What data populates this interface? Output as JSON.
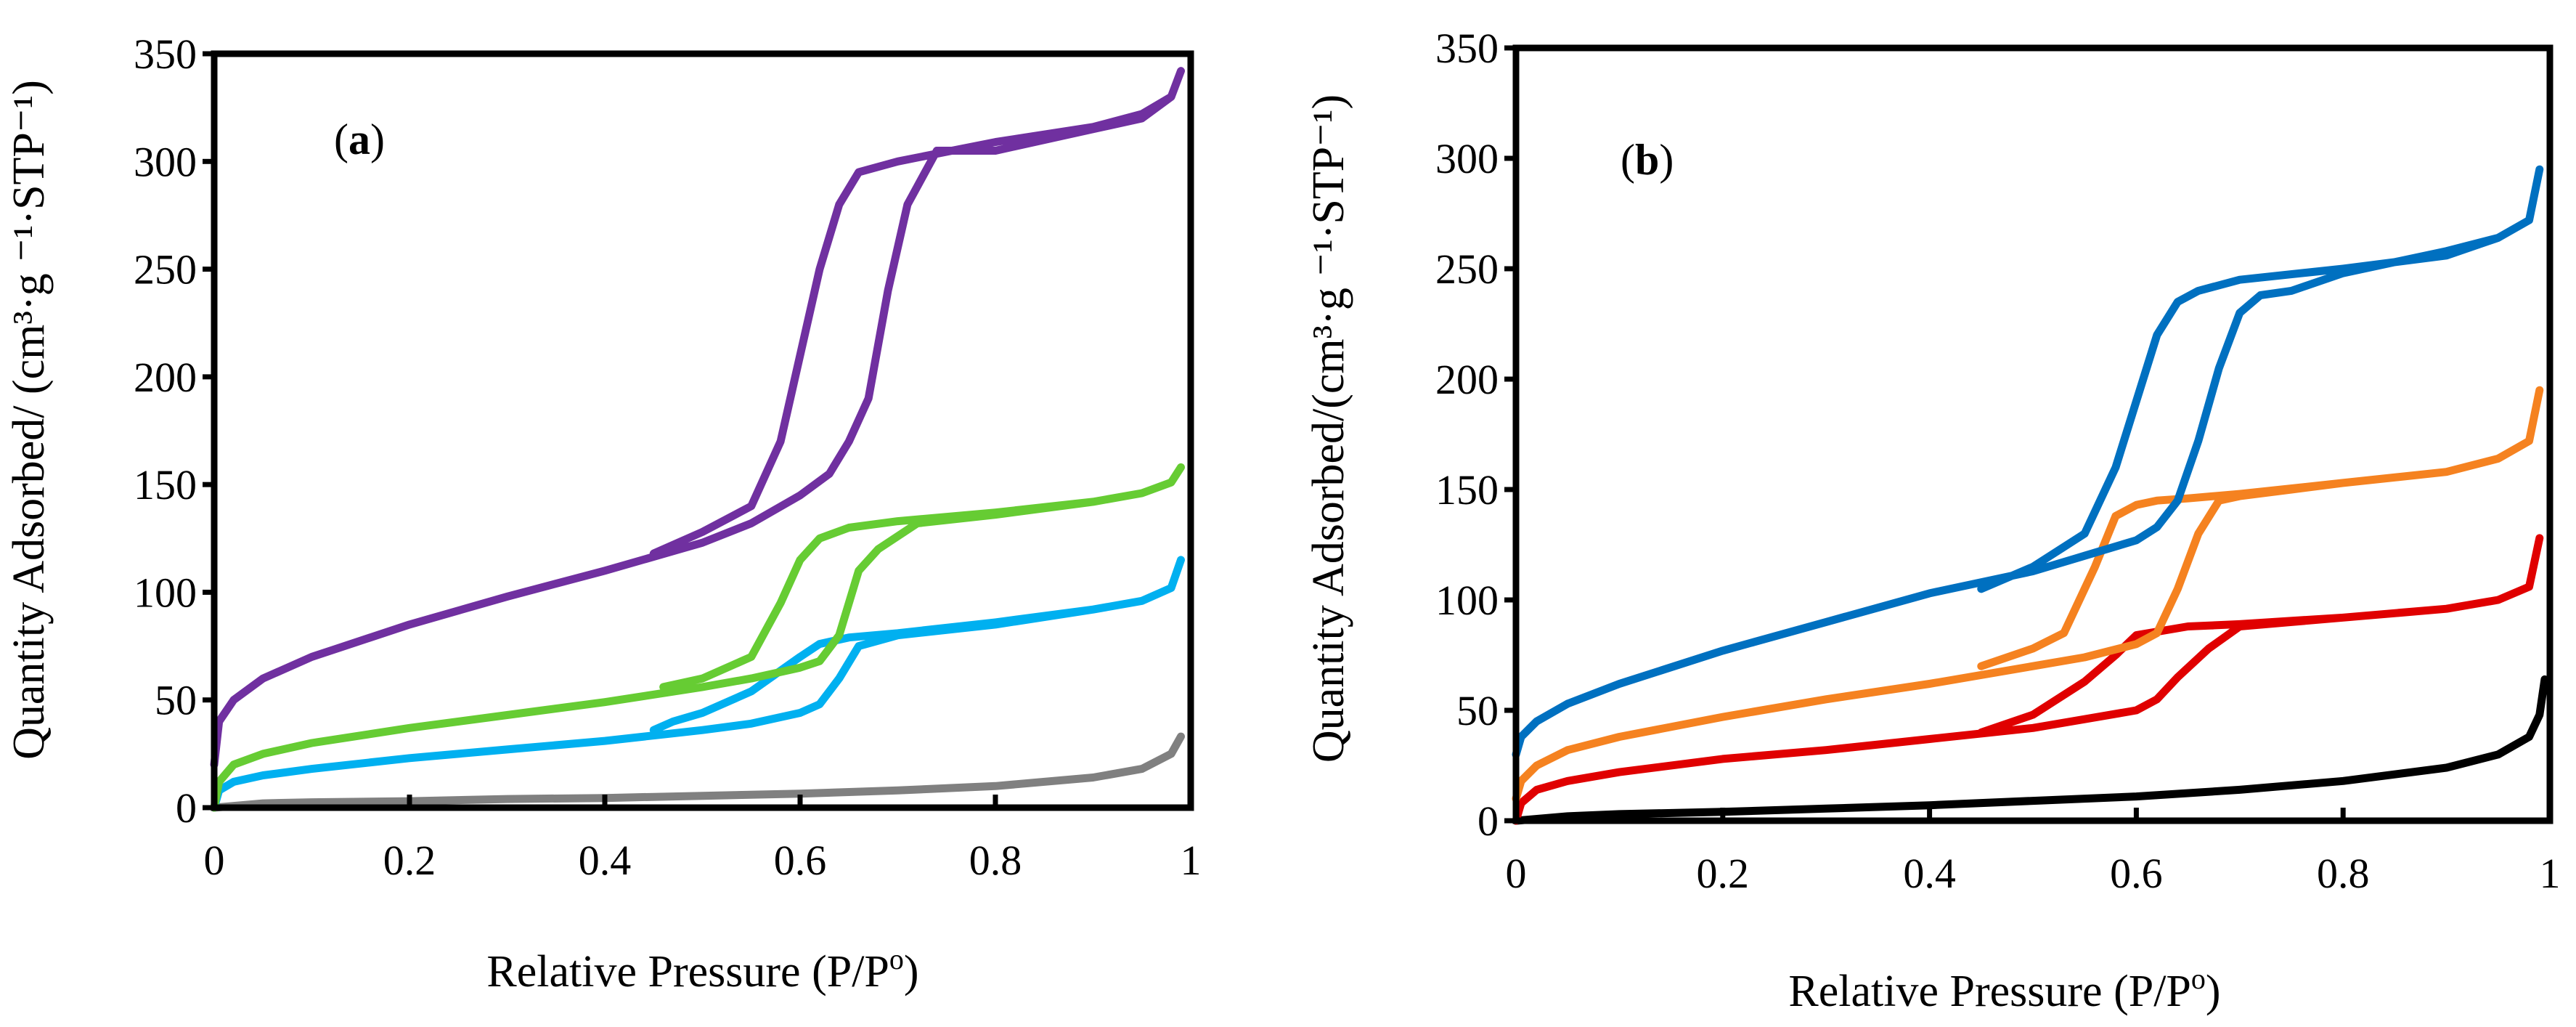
{
  "chart_data": [
    {
      "type": "line",
      "panel_label_open": "(",
      "panel_label_letter": "a",
      "panel_label_close": ")",
      "xlabel": "Relative Pressure (P/P",
      "xlabel_sup": "o",
      "xlabel_end": ")",
      "ylabel": "Quantity Adsorbed/ (cm³·g ⁻¹·STP⁻¹)",
      "xlim": [
        0,
        1
      ],
      "ylim": [
        0,
        350
      ],
      "xticks": [
        "0",
        "0.2",
        "0.4",
        "0.6",
        "0.8",
        "1"
      ],
      "yticks": [
        "0",
        "50",
        "100",
        "150",
        "200",
        "250",
        "300",
        "350"
      ],
      "grid": false,
      "series": [
        {
          "color": "#808080",
          "x": [
            0.0,
            0.05,
            0.1,
            0.2,
            0.3,
            0.4,
            0.5,
            0.6,
            0.7,
            0.8,
            0.9,
            0.95,
            0.98,
            0.99
          ],
          "y": [
            0,
            2,
            2.5,
            3,
            4,
            4.5,
            5.5,
            6.5,
            8,
            10,
            14,
            18,
            25,
            33
          ]
        },
        {
          "color": "#00B0F0",
          "x": [
            0.0,
            0.005,
            0.02,
            0.05,
            0.1,
            0.2,
            0.3,
            0.4,
            0.5,
            0.55,
            0.6,
            0.62,
            0.64,
            0.66,
            0.7,
            0.8,
            0.9,
            0.95,
            0.98,
            0.99,
            0.98,
            0.95,
            0.9,
            0.8,
            0.7,
            0.65,
            0.62,
            0.6,
            0.55,
            0.5,
            0.47,
            0.45
          ],
          "y": [
            0,
            8,
            12,
            15,
            18,
            23,
            27,
            31,
            36,
            39,
            44,
            48,
            60,
            75,
            80,
            85,
            92,
            96,
            102,
            115,
            102,
            96,
            92,
            86,
            81,
            79,
            76,
            70,
            54,
            44,
            40,
            36
          ]
        },
        {
          "color": "#66CC33",
          "x": [
            0.0,
            0.005,
            0.02,
            0.05,
            0.1,
            0.2,
            0.3,
            0.4,
            0.5,
            0.55,
            0.6,
            0.62,
            0.64,
            0.66,
            0.68,
            0.72,
            0.8,
            0.9,
            0.95,
            0.98,
            0.99,
            0.98,
            0.95,
            0.9,
            0.8,
            0.7,
            0.65,
            0.62,
            0.6,
            0.58,
            0.55,
            0.5,
            0.46
          ],
          "y": [
            0,
            12,
            20,
            25,
            30,
            37,
            43,
            49,
            56,
            60,
            65,
            68,
            80,
            110,
            120,
            132,
            136,
            142,
            146,
            151,
            158,
            151,
            146,
            142,
            137,
            133,
            130,
            125,
            115,
            95,
            70,
            60,
            56
          ]
        },
        {
          "color": "#7030A0",
          "x": [
            0.0,
            0.005,
            0.02,
            0.05,
            0.1,
            0.2,
            0.3,
            0.4,
            0.5,
            0.55,
            0.6,
            0.63,
            0.65,
            0.67,
            0.69,
            0.71,
            0.74,
            0.8,
            0.9,
            0.95,
            0.98,
            0.99,
            0.98,
            0.95,
            0.9,
            0.8,
            0.7,
            0.66,
            0.64,
            0.62,
            0.6,
            0.58,
            0.55,
            0.5,
            0.45
          ],
          "y": [
            20,
            40,
            50,
            60,
            70,
            85,
            98,
            110,
            123,
            132,
            145,
            155,
            170,
            190,
            240,
            280,
            305,
            305,
            315,
            320,
            330,
            342,
            330,
            322,
            316,
            309,
            300,
            295,
            280,
            250,
            210,
            170,
            140,
            128,
            118
          ]
        }
      ]
    },
    {
      "type": "line",
      "panel_label_open": "(",
      "panel_label_letter": "b",
      "panel_label_close": ")",
      "xlabel": "Relative Pressure (P/P",
      "xlabel_sup": "o",
      "xlabel_end": ")",
      "ylabel": "Quantity Adsorbed/(cm³·g ⁻¹·STP⁻¹)",
      "xlim": [
        0,
        1
      ],
      "ylim": [
        0,
        350
      ],
      "xticks": [
        "0",
        "0.2",
        "0.4",
        "0.6",
        "0.8",
        "1"
      ],
      "yticks": [
        "0",
        "50",
        "100",
        "150",
        "200",
        "250",
        "300",
        "350"
      ],
      "grid": false,
      "series": [
        {
          "color": "#000000",
          "x": [
            0.0,
            0.05,
            0.1,
            0.2,
            0.3,
            0.4,
            0.5,
            0.6,
            0.7,
            0.8,
            0.9,
            0.95,
            0.98,
            0.99,
            0.995
          ],
          "y": [
            0,
            2,
            3,
            4,
            5.5,
            7,
            9,
            11,
            14,
            18,
            24,
            30,
            38,
            48,
            64
          ]
        },
        {
          "color": "#E00000",
          "x": [
            0.0,
            0.005,
            0.02,
            0.05,
            0.1,
            0.2,
            0.3,
            0.4,
            0.5,
            0.55,
            0.6,
            0.62,
            0.64,
            0.67,
            0.7,
            0.75,
            0.8,
            0.9,
            0.95,
            0.98,
            0.99,
            0.98,
            0.95,
            0.9,
            0.8,
            0.7,
            0.65,
            0.6,
            0.58,
            0.55,
            0.5,
            0.45
          ],
          "y": [
            0,
            8,
            14,
            18,
            22,
            28,
            32,
            37,
            42,
            46,
            50,
            55,
            65,
            78,
            88,
            90,
            92,
            96,
            100,
            106,
            128,
            106,
            100,
            96,
            92,
            89,
            88,
            84,
            75,
            63,
            48,
            40
          ]
        },
        {
          "color": "#F58220",
          "x": [
            0.0,
            0.005,
            0.02,
            0.05,
            0.1,
            0.2,
            0.3,
            0.4,
            0.5,
            0.55,
            0.6,
            0.62,
            0.64,
            0.66,
            0.68,
            0.7,
            0.75,
            0.8,
            0.9,
            0.95,
            0.98,
            0.99,
            0.98,
            0.95,
            0.9,
            0.8,
            0.7,
            0.65,
            0.62,
            0.6,
            0.58,
            0.56,
            0.53,
            0.5,
            0.45
          ],
          "y": [
            10,
            18,
            25,
            32,
            38,
            47,
            55,
            62,
            70,
            74,
            80,
            85,
            105,
            130,
            145,
            147,
            150,
            153,
            158,
            164,
            172,
            195,
            172,
            164,
            158,
            153,
            148,
            146,
            145,
            143,
            138,
            115,
            85,
            78,
            70
          ]
        },
        {
          "color": "#0070C0",
          "x": [
            0.0,
            0.005,
            0.02,
            0.05,
            0.1,
            0.2,
            0.3,
            0.4,
            0.5,
            0.55,
            0.6,
            0.62,
            0.64,
            0.66,
            0.68,
            0.7,
            0.72,
            0.75,
            0.8,
            0.9,
            0.95,
            0.98,
            0.99,
            0.98,
            0.95,
            0.9,
            0.8,
            0.7,
            0.66,
            0.64,
            0.62,
            0.6,
            0.58,
            0.55,
            0.5,
            0.45
          ],
          "y": [
            30,
            38,
            45,
            53,
            62,
            77,
            90,
            103,
            113,
            120,
            127,
            133,
            145,
            172,
            205,
            230,
            238,
            240,
            248,
            258,
            264,
            272,
            295,
            272,
            264,
            256,
            250,
            245,
            240,
            235,
            220,
            190,
            160,
            130,
            115,
            105
          ]
        }
      ]
    }
  ]
}
